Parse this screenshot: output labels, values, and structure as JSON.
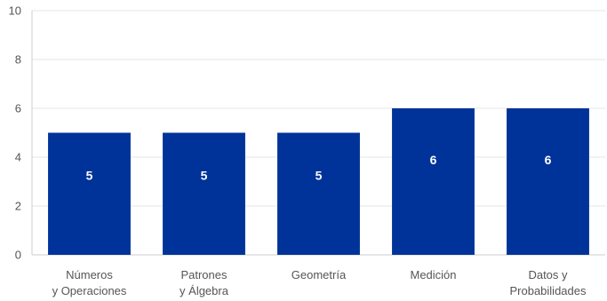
{
  "chart_data": {
    "type": "bar",
    "categories": [
      [
        "Números",
        "y Operaciones"
      ],
      [
        "Patrones",
        "y Álgebra"
      ],
      [
        "Geometría"
      ],
      [
        "Medición"
      ],
      [
        "Datos y",
        "Probabilidades"
      ]
    ],
    "values": [
      5,
      5,
      5,
      6,
      6
    ],
    "data_labels": [
      "5",
      "5",
      "5",
      "6",
      "6"
    ],
    "ylim": [
      0,
      10
    ],
    "yticks": [
      "0",
      "2",
      "4",
      "6",
      "8",
      "10"
    ],
    "grid": true,
    "legend": "none",
    "title": "",
    "xlabel": "",
    "ylabel": "",
    "colors": {
      "bar": "#003399",
      "grid": "#e6e6e6",
      "axis": "#cccccc",
      "text": "#555555",
      "data_label": "#ffffff"
    }
  }
}
